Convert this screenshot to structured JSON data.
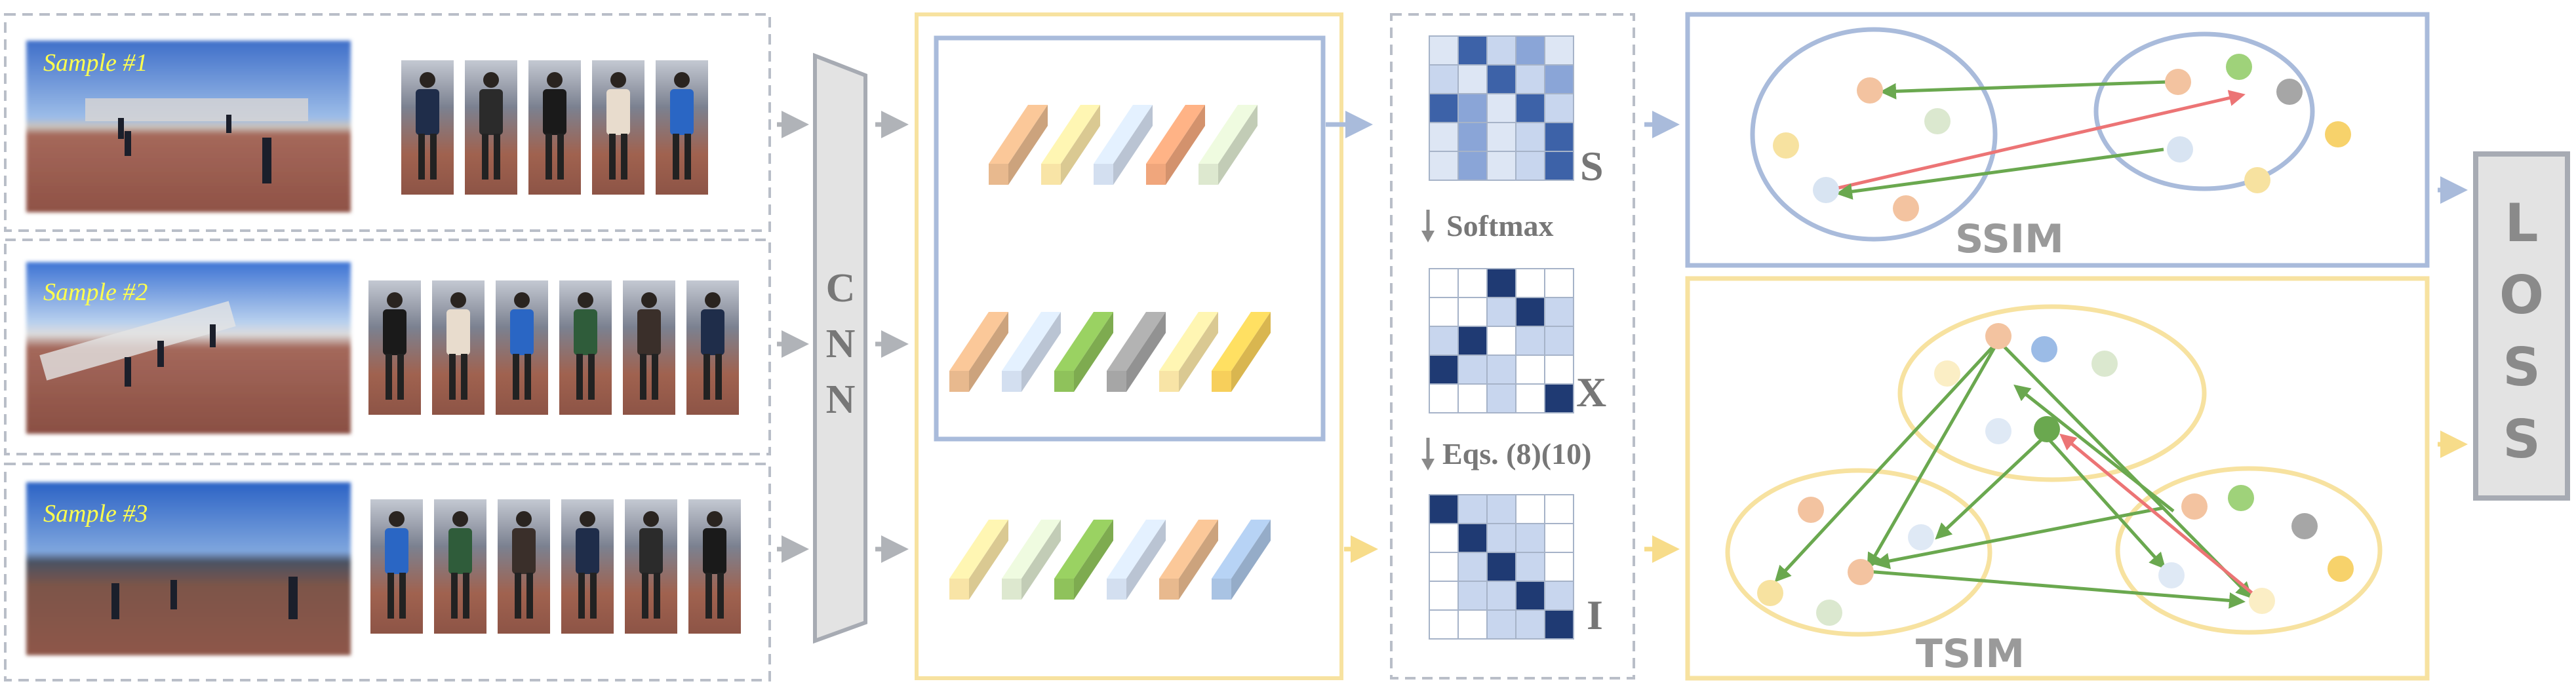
{
  "samples": [
    {
      "label": "Sample #1",
      "crop_count": 5
    },
    {
      "label": "Sample #2",
      "crop_count": 6
    },
    {
      "label": "Sample #3",
      "crop_count": 6
    }
  ],
  "cnn": {
    "letters": [
      "C",
      "N",
      "N"
    ]
  },
  "matrices": {
    "s_label": "S",
    "softmax_label": "Softmax",
    "x_label": "X",
    "eqs_label": "Eqs. (8)(10)",
    "i_label": "I"
  },
  "ssim_label": "SSIM",
  "tsim_label": "TSIM",
  "loss_letters": [
    "L",
    "O",
    "S",
    "S"
  ],
  "colors": {
    "gray_border": "#b9bec8",
    "yellow_border": "#f7e2a0",
    "blue_border": "#a9bbdb",
    "arrow_gray": "#b0b3b8",
    "green_arrow": "#6aa84f",
    "red_arrow": "#ec7475",
    "sample_label": "#ffff4d",
    "label_gray": "#777777"
  },
  "feature_rows": [
    [
      "#e8b98e",
      "#f8e4a6",
      "#d3dff0",
      "#f0a67c",
      "#dde8cf"
    ],
    [
      "#e8b98e",
      "#d3dff0",
      "#8fc25b",
      "#a6a6a6",
      "#f8e4a6",
      "#f7cf5b"
    ],
    [
      "#f8e4a6",
      "#dde8cf",
      "#8fc25b",
      "#d3dff0",
      "#e8b98e",
      "#a9c3e3"
    ]
  ],
  "matrix_cells": {
    "S": [
      [
        0.2,
        2,
        0.5,
        1.5,
        0.2
      ],
      [
        0.5,
        0.2,
        2,
        0.5,
        1.5
      ],
      [
        2,
        1.5,
        0.2,
        2,
        0.5
      ],
      [
        0.2,
        1.5,
        0.2,
        0.5,
        2
      ],
      [
        0.2,
        1.5,
        0.2,
        0.5,
        2
      ]
    ],
    "X": [
      [
        0,
        0,
        3,
        0,
        0
      ],
      [
        0,
        0,
        0.5,
        3,
        0.5
      ],
      [
        0.5,
        3,
        0,
        0.5,
        0.5
      ],
      [
        3,
        0.5,
        0.5,
        0,
        0
      ],
      [
        0,
        0,
        0.5,
        0,
        3
      ]
    ],
    "I": [
      [
        3,
        0.5,
        0.5,
        0,
        0
      ],
      [
        0,
        3,
        0.5,
        0.5,
        0
      ],
      [
        0,
        0.5,
        3,
        0.5,
        0
      ],
      [
        0,
        0.5,
        0.5,
        3,
        0.5
      ],
      [
        0,
        0,
        0.5,
        0.5,
        3
      ]
    ]
  },
  "ssim_dots": [
    [
      "#f3c3a0",
      "#f7e2a0",
      "#dbe8cf",
      "#d8e4f2",
      "#f3c3a0"
    ],
    [
      "#f3c3a0",
      "#9fd27a",
      "#a6a6a6",
      "#d8e4f2",
      "#f7e2a0",
      "#f7d26b"
    ]
  ],
  "tsim_dots": [
    [
      "#f3c3a0",
      "#9bbbe6",
      "#dbe8cf",
      "#fbeec5",
      "#dfe9f5",
      "#6aa84f"
    ],
    [
      "#f3c3a0",
      "#dfe9f5",
      "#f7e2a0",
      "#f3c3a0",
      "#dbe8cf"
    ],
    [
      "#f3c3a0",
      "#9fd27a",
      "#a6a6a6",
      "#f7d26b",
      "#dfe9f5",
      "#fbeec5"
    ]
  ]
}
